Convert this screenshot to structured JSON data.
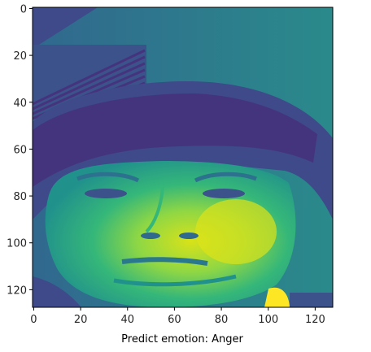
{
  "chart_data": {
    "type": "heatmap",
    "image_kind": "grayscale face image rendered with viridis colormap",
    "colormap": "viridis",
    "colors": {
      "low": "#440154",
      "mid_low": "#3b528b",
      "mid": "#21918c",
      "mid_high": "#5ec962",
      "high": "#fde725",
      "background": "#2a7a8c"
    },
    "xlabel": "Predict emotion: Anger",
    "ylabel": "",
    "title": "",
    "xlim": [
      -0.5,
      127.5
    ],
    "ylim": [
      127.5,
      -0.5
    ],
    "xticks": [
      0,
      20,
      40,
      60,
      80,
      100,
      120
    ],
    "yticks": [
      0,
      20,
      40,
      60,
      80,
      100,
      120
    ],
    "grid": false,
    "legend": "none"
  }
}
